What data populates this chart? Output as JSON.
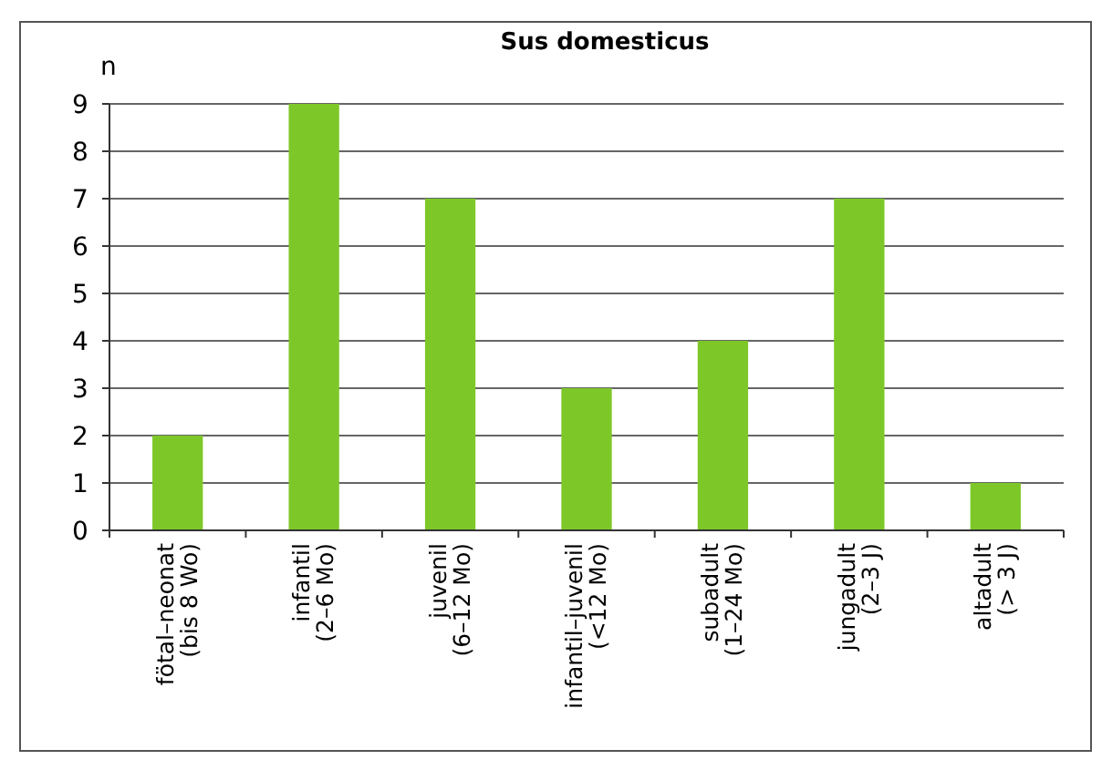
{
  "chart_data": {
    "type": "bar",
    "title": "Sus domesticus",
    "ylabel": "n",
    "categories": [
      "fötal–neonat\n(bis 8 Wo)",
      "infantil\n(2–6 Mo)",
      "juvenil\n(6–12 Mo)",
      "infantil–juvenil\n(<12 Mo)",
      "subadult\n(1–24 Mo)",
      "jungadult\n(2–3 J)",
      "altadult\n(> 3 J)"
    ],
    "values": [
      2,
      9,
      7,
      3,
      4,
      7,
      1
    ],
    "color": "#7dc828",
    "ylim": [
      0,
      9
    ],
    "yticks": [
      0,
      1,
      2,
      3,
      4,
      5,
      6,
      7,
      8,
      9
    ],
    "grid": "y"
  }
}
